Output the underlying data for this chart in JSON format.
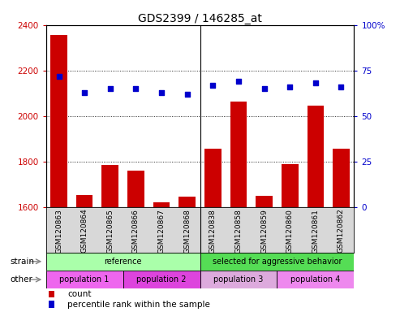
{
  "title": "GDS2399 / 146285_at",
  "samples": [
    "GSM120863",
    "GSM120864",
    "GSM120865",
    "GSM120866",
    "GSM120867",
    "GSM120868",
    "GSM120838",
    "GSM120858",
    "GSM120859",
    "GSM120860",
    "GSM120861",
    "GSM120862"
  ],
  "counts": [
    2355,
    1655,
    1785,
    1760,
    1620,
    1645,
    1855,
    2065,
    1650,
    1790,
    2045,
    1855
  ],
  "percentile_ranks": [
    72,
    63,
    65,
    65,
    63,
    62,
    67,
    69,
    65,
    66,
    68,
    66
  ],
  "ylim_left": [
    1600,
    2400
  ],
  "ylim_right": [
    0,
    100
  ],
  "yticks_left": [
    1600,
    1800,
    2000,
    2200,
    2400
  ],
  "yticks_right": [
    0,
    25,
    50,
    75,
    100
  ],
  "bar_color": "#cc0000",
  "dot_color": "#0000cc",
  "strain_groups": [
    {
      "label": "reference",
      "start": 0,
      "end": 6,
      "color": "#aaffaa"
    },
    {
      "label": "selected for aggressive behavior",
      "start": 6,
      "end": 12,
      "color": "#55dd55"
    }
  ],
  "other_groups": [
    {
      "label": "population 1",
      "start": 0,
      "end": 3,
      "color": "#ee66ee"
    },
    {
      "label": "population 2",
      "start": 3,
      "end": 6,
      "color": "#dd44dd"
    },
    {
      "label": "population 3",
      "start": 6,
      "end": 9,
      "color": "#ddaadd"
    },
    {
      "label": "population 4",
      "start": 9,
      "end": 12,
      "color": "#ee88ee"
    }
  ],
  "strain_label": "strain",
  "other_label": "other",
  "legend_count_label": "count",
  "legend_pct_label": "percentile rank within the sample",
  "tick_color_left": "#cc0000",
  "tick_color_right": "#0000cc",
  "group_divider": 6
}
